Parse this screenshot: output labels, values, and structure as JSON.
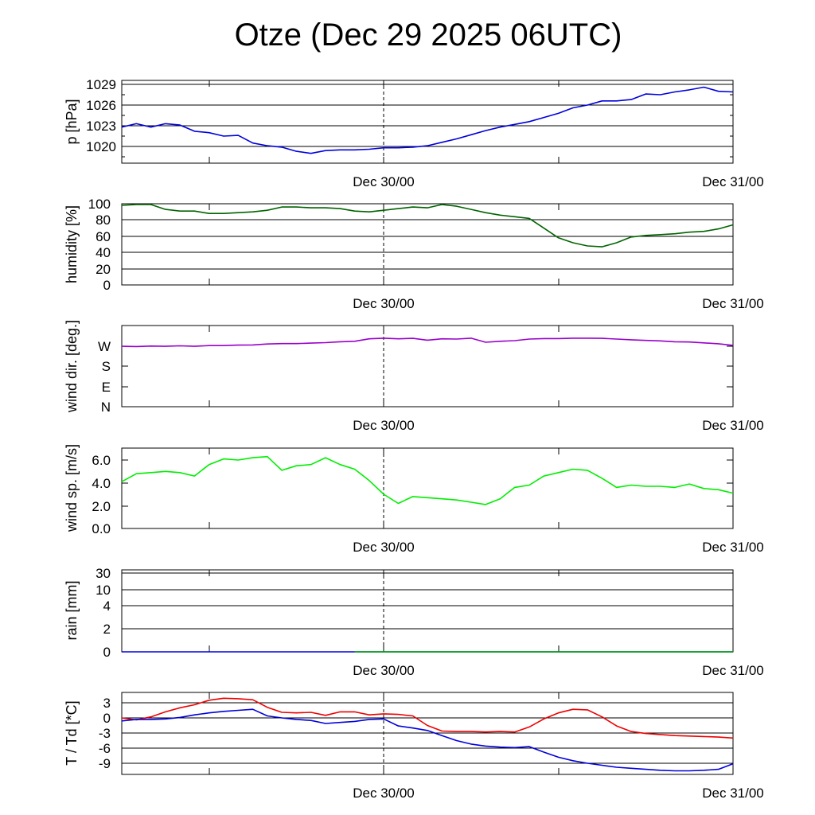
{
  "title": "Otze (Dec 29 2025 06UTC)",
  "x_tick_labels": [
    "Dec 30/00",
    "Dec 31/00"
  ],
  "chart_data": [
    {
      "type": "line",
      "ylabel": "p [hPa]",
      "yticks": [
        1020,
        1023,
        1026,
        1029
      ],
      "ylim": [
        1017.7,
        1029.7
      ],
      "grid": true,
      "series": [
        {
          "color": "#0000dd",
          "x": [
            0,
            1,
            2,
            3,
            4,
            5,
            6,
            7,
            8,
            9,
            10,
            11,
            12,
            13,
            14,
            15,
            16,
            17,
            18,
            19,
            20,
            21,
            22,
            23,
            24,
            25,
            26,
            27,
            28,
            29,
            30,
            31,
            32,
            33,
            34,
            35,
            36,
            37,
            38,
            39,
            40,
            41,
            42
          ],
          "y": [
            1022.8,
            1023.3,
            1022.8,
            1023.3,
            1023.1,
            1022.2,
            1022.0,
            1021.5,
            1021.6,
            1020.5,
            1020.1,
            1019.9,
            1019.3,
            1019.0,
            1019.4,
            1019.5,
            1019.5,
            1019.6,
            1019.8,
            1019.8,
            1019.9,
            1020.1,
            1020.6,
            1021.1,
            1021.7,
            1022.3,
            1022.8,
            1023.2,
            1023.6,
            1024.2,
            1024.8,
            1025.6,
            1026.0,
            1026.6,
            1026.6,
            1026.8,
            1027.6,
            1027.5,
            1027.9,
            1028.2,
            1028.6,
            1028.0,
            1027.9
          ]
        }
      ]
    },
    {
      "type": "line",
      "ylabel": "humidity [%]",
      "yticks": [
        0,
        20,
        40,
        60,
        80,
        100
      ],
      "ylim": [
        0,
        100
      ],
      "grid": true,
      "series": [
        {
          "color": "#006400",
          "x": [
            0,
            1,
            2,
            3,
            4,
            5,
            6,
            7,
            8,
            9,
            10,
            11,
            12,
            13,
            14,
            15,
            16,
            17,
            18,
            19,
            20,
            21,
            22,
            23,
            24,
            25,
            26,
            27,
            28,
            29,
            30,
            31,
            32,
            33,
            34,
            35,
            36,
            37,
            38,
            39,
            40,
            41,
            42
          ],
          "y": [
            98,
            99,
            99,
            93,
            91,
            91,
            88,
            88,
            89,
            90,
            92,
            96,
            96,
            95,
            95,
            94,
            91,
            90,
            92,
            94,
            96,
            95,
            99,
            97,
            93,
            89,
            86,
            84,
            82,
            70,
            58,
            52,
            48,
            47,
            52,
            59,
            61,
            62,
            63,
            65,
            66,
            69,
            74
          ]
        }
      ]
    },
    {
      "type": "line",
      "ylabel": "wind dir. [deg.]",
      "yticks": [
        "N",
        "E",
        "S",
        "W"
      ],
      "ylim": [
        0,
        360
      ],
      "grid": false,
      "series": [
        {
          "color": "#9900cc",
          "x": [
            0,
            1,
            2,
            3,
            4,
            5,
            6,
            7,
            8,
            9,
            10,
            11,
            12,
            13,
            14,
            15,
            16,
            17,
            18,
            19,
            20,
            21,
            22,
            23,
            24,
            25,
            26,
            27,
            28,
            29,
            30,
            31,
            32,
            33,
            34,
            35,
            36,
            37,
            38,
            39,
            40,
            41,
            42
          ],
          "y": [
            268,
            267,
            269,
            268,
            270,
            268,
            271,
            271,
            273,
            274,
            278,
            280,
            280,
            282,
            284,
            288,
            290,
            301,
            304,
            301,
            303,
            295,
            301,
            300,
            304,
            286,
            290,
            293,
            300,
            302,
            302,
            304,
            304,
            303,
            300,
            297,
            294,
            292,
            288,
            287,
            283,
            279,
            272
          ]
        }
      ]
    },
    {
      "type": "line",
      "ylabel": "wind sp. [m/s]",
      "yticks": [
        "0.0",
        "2.0",
        "4.0",
        "6.0"
      ],
      "ylim": [
        0,
        7
      ],
      "grid": false,
      "series": [
        {
          "color": "#00ee00",
          "x": [
            0,
            1,
            2,
            3,
            4,
            5,
            6,
            7,
            8,
            9,
            10,
            11,
            12,
            13,
            14,
            15,
            16,
            17,
            18,
            19,
            20,
            21,
            22,
            23,
            24,
            25,
            26,
            27,
            28,
            29,
            30,
            31,
            32,
            33,
            34,
            35,
            36,
            37,
            38,
            39,
            40,
            41,
            42
          ],
          "y": [
            4.1,
            4.8,
            4.9,
            5.0,
            4.9,
            4.6,
            5.6,
            6.1,
            6.0,
            6.2,
            6.3,
            5.1,
            5.5,
            5.6,
            6.2,
            5.6,
            5.2,
            4.2,
            3.0,
            2.2,
            2.8,
            2.7,
            2.6,
            2.5,
            2.3,
            2.1,
            2.6,
            3.6,
            3.8,
            4.6,
            4.9,
            5.2,
            5.1,
            4.4,
            3.6,
            3.8,
            3.7,
            3.7,
            3.6,
            3.9,
            3.5,
            3.4,
            3.1
          ]
        }
      ]
    },
    {
      "type": "line",
      "ylabel": "rain [mm]",
      "yticks": [
        "0",
        "2",
        "4",
        "10",
        "30"
      ],
      "ylim": [
        0,
        30
      ],
      "grid": true,
      "series": [
        {
          "color": "#0000dd",
          "x": [
            0,
            42
          ],
          "y": [
            0,
            0
          ]
        },
        {
          "color": "#00aa00",
          "x": [
            16,
            42
          ],
          "y": [
            0,
            0
          ]
        }
      ]
    },
    {
      "type": "line",
      "ylabel": "T / Td [*C]",
      "yticks": [
        "-9",
        "-6",
        "-3",
        "0",
        "3"
      ],
      "ylim": [
        -11,
        5
      ],
      "grid": true,
      "series": [
        {
          "color": "#ee0000",
          "x": [
            0,
            1,
            2,
            3,
            4,
            5,
            6,
            7,
            8,
            9,
            10,
            11,
            12,
            13,
            14,
            15,
            16,
            17,
            18,
            19,
            20,
            21,
            22,
            23,
            24,
            25,
            26,
            27,
            28,
            29,
            30,
            31,
            32,
            33,
            34,
            35,
            36,
            37,
            38,
            39,
            40,
            41,
            42
          ],
          "y": [
            0.0,
            -0.4,
            0.2,
            1.2,
            2.0,
            2.6,
            3.5,
            3.9,
            3.8,
            3.6,
            2.1,
            1.1,
            1.0,
            1.1,
            0.5,
            1.2,
            1.2,
            0.6,
            0.8,
            0.7,
            0.4,
            -1.5,
            -2.6,
            -2.7,
            -2.7,
            -2.8,
            -2.7,
            -2.8,
            -1.8,
            -0.2,
            1.0,
            1.7,
            1.6,
            0.2,
            -1.6,
            -2.7,
            -3.1,
            -3.3,
            -3.5,
            -3.6,
            -3.7,
            -3.8,
            -4.0
          ]
        }
      ]
    },
    {
      "type": "line",
      "ylabel": "",
      "series": [
        {
          "color": "#0000dd",
          "x": [
            0,
            1,
            2,
            3,
            4,
            5,
            6,
            7,
            8,
            9,
            10,
            11,
            12,
            13,
            14,
            15,
            16,
            17,
            18,
            19,
            20,
            21,
            22,
            23,
            24,
            25,
            26,
            27,
            28,
            29,
            30,
            31,
            32,
            33,
            34,
            35,
            36,
            37,
            38,
            39,
            40,
            41,
            42
          ],
          "y": [
            -0.6,
            -0.3,
            -0.3,
            -0.2,
            0.1,
            0.6,
            1.0,
            1.3,
            1.5,
            1.7,
            0.4,
            0.0,
            -0.3,
            -0.5,
            -1.1,
            -0.9,
            -0.7,
            -0.3,
            -0.2,
            -1.6,
            -2.0,
            -2.5,
            -3.5,
            -4.5,
            -5.2,
            -5.6,
            -5.8,
            -5.9,
            -5.7,
            -6.8,
            -7.8,
            -8.5,
            -9.0,
            -9.4,
            -9.8,
            -10.0,
            -10.2,
            -10.4,
            -10.5,
            -10.5,
            -10.4,
            -10.2,
            -9.1
          ]
        }
      ]
    }
  ]
}
